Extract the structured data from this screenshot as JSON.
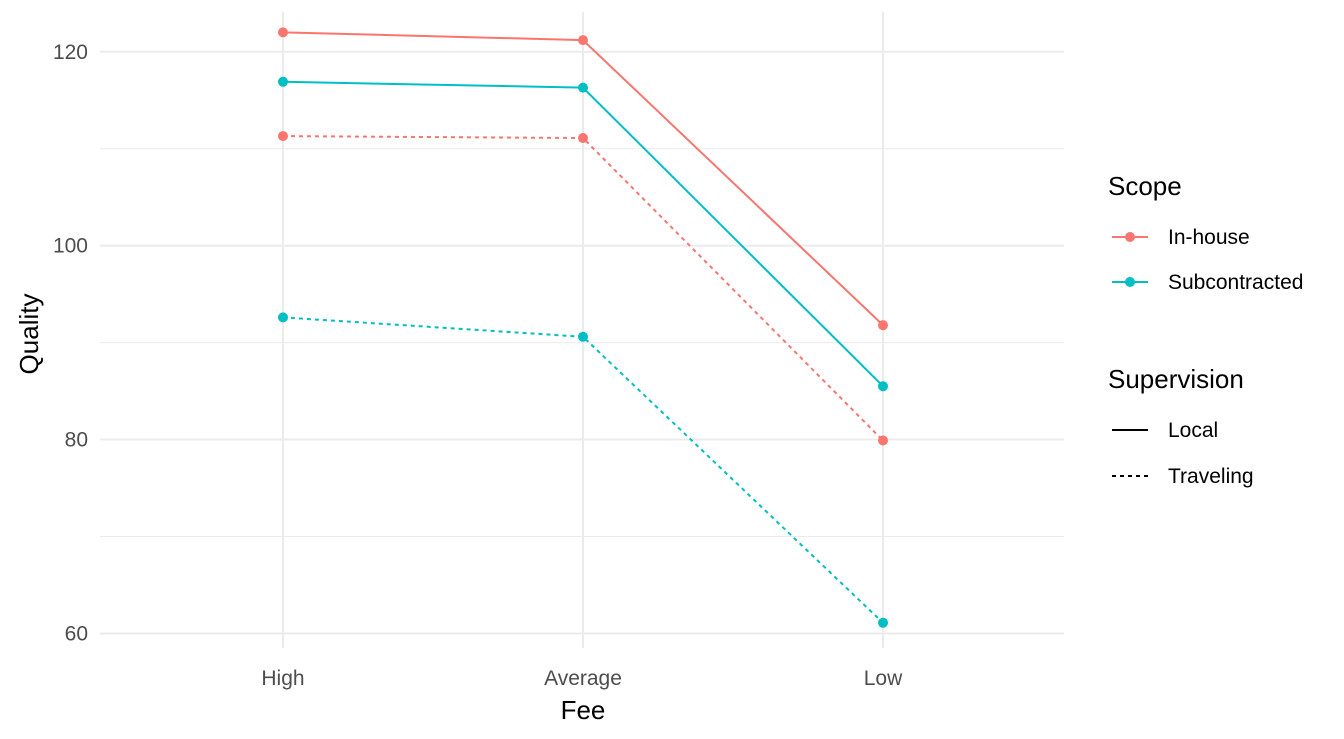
{
  "chart_data": {
    "type": "line",
    "title": "",
    "xlabel": "Fee",
    "ylabel": "Quality",
    "categories": [
      "High",
      "Average",
      "Low"
    ],
    "y_ticks": [
      60,
      80,
      100,
      120
    ],
    "ylim": [
      58.5,
      124.1
    ],
    "grid": true,
    "legend_position": "right",
    "legends": [
      {
        "title": "Scope",
        "entries": [
          {
            "label": "In-house",
            "color": "#F8766D"
          },
          {
            "label": "Subcontracted",
            "color": "#00BFC4"
          }
        ]
      },
      {
        "title": "Supervision",
        "entries": [
          {
            "label": "Local",
            "linetype": "solid"
          },
          {
            "label": "Traveling",
            "linetype": "dashed"
          }
        ]
      }
    ],
    "series": [
      {
        "scope": "In-house",
        "supervision": "Local",
        "color": "#F8766D",
        "linetype": "solid",
        "values": [
          122.0,
          121.2,
          91.8
        ]
      },
      {
        "scope": "Subcontracted",
        "supervision": "Local",
        "color": "#00BFC4",
        "linetype": "solid",
        "values": [
          116.9,
          116.3,
          85.5
        ]
      },
      {
        "scope": "In-house",
        "supervision": "Traveling",
        "color": "#F8766D",
        "linetype": "dashed",
        "values": [
          111.3,
          111.1,
          79.9
        ]
      },
      {
        "scope": "Subcontracted",
        "supervision": "Traveling",
        "color": "#00BFC4",
        "linetype": "dashed",
        "values": [
          92.6,
          90.6,
          61.1
        ]
      }
    ]
  }
}
